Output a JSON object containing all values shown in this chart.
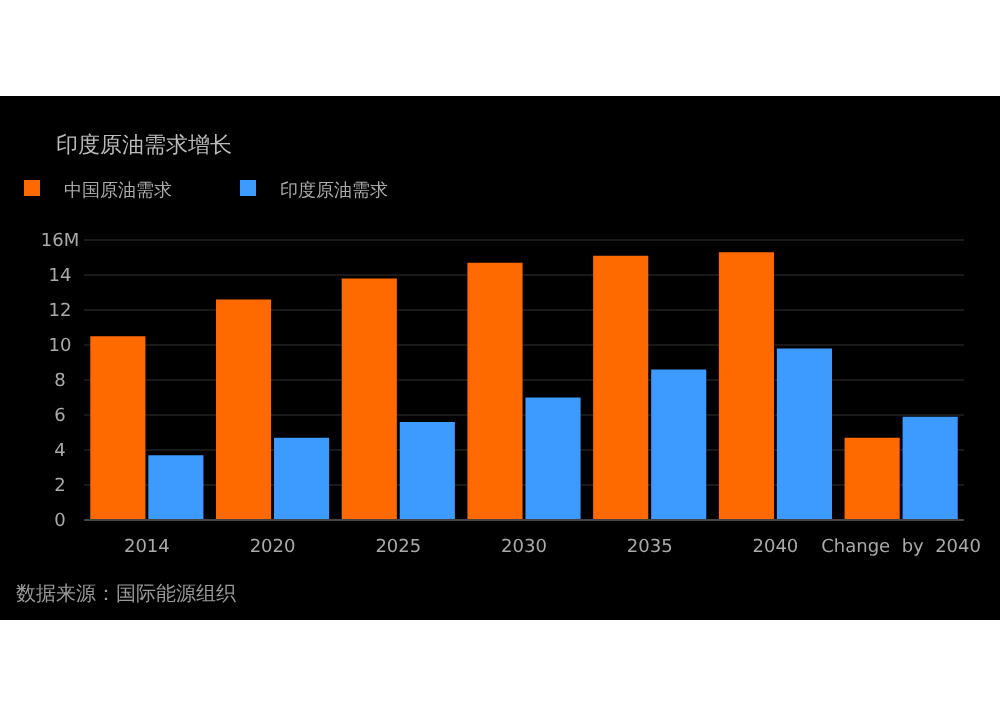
{
  "chart_data": {
    "type": "bar",
    "title": "印度原油需求增长",
    "categories": [
      "2014",
      "2020",
      "2025",
      "2030",
      "2035",
      "2040",
      "Change  by  2040"
    ],
    "series": [
      {
        "name": "中国原油需求",
        "color": "#ff6a00",
        "values": [
          10.5,
          12.6,
          13.8,
          14.7,
          15.1,
          15.3,
          4.7
        ]
      },
      {
        "name": "印度原油需求",
        "color": "#3d9bff",
        "values": [
          3.7,
          4.7,
          5.6,
          7.0,
          8.6,
          9.8,
          5.9
        ]
      }
    ],
    "ylim": [
      0,
      16
    ],
    "yticks": [
      0,
      2,
      4,
      6,
      8,
      10,
      12,
      14,
      {
        "value": 16,
        "label": "16M"
      }
    ],
    "grid": "y",
    "legend": "top left",
    "annotations": [
      "数据来源：国际能源组织"
    ]
  }
}
